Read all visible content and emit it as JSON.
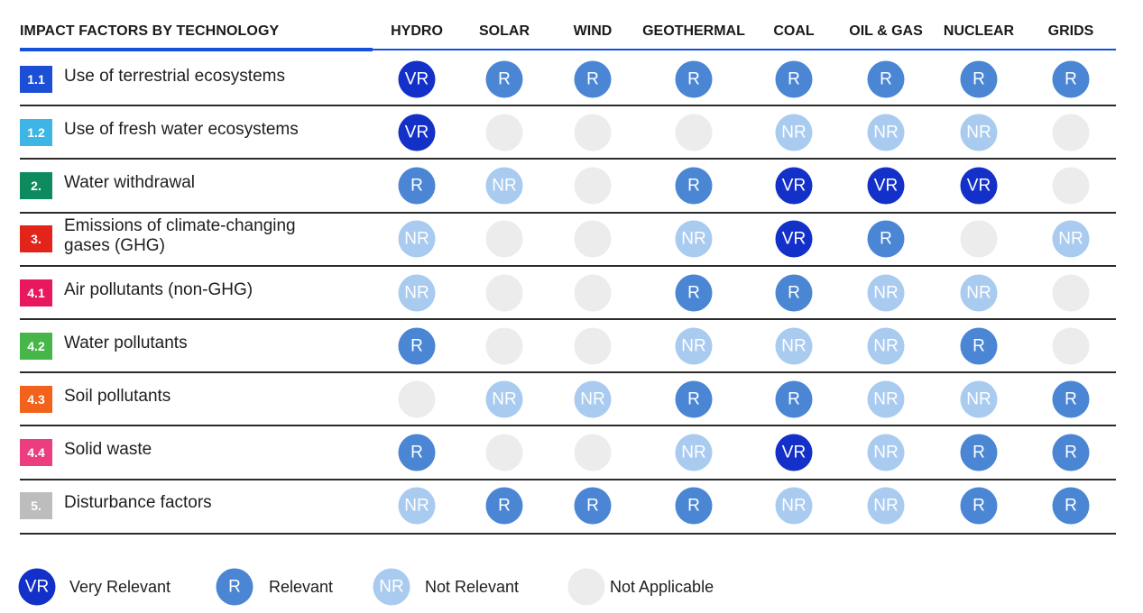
{
  "chart_data": {
    "type": "table",
    "title": "IMPACT FACTORS BY TECHNOLOGY",
    "columns": [
      "HYDRO",
      "SOLAR",
      "WIND",
      "GEOTHERMAL",
      "COAL",
      "OIL & GAS",
      "NUCLEAR",
      "GRIDS"
    ],
    "rows": [
      {
        "code": "1.1",
        "label": "Use of terrestrial ecosystems",
        "badge_color": "#1a4fd6",
        "values": [
          "VR",
          "R",
          "R",
          "R",
          "R",
          "R",
          "R",
          "R"
        ]
      },
      {
        "code": "1.2",
        "label": "Use of fresh water ecosystems",
        "badge_color": "#3db6e5",
        "values": [
          "VR",
          "NA",
          "NA",
          "NA",
          "NR",
          "NR",
          "NR",
          "NA"
        ]
      },
      {
        "code": "2.",
        "label": "Water withdrawal",
        "badge_color": "#0e8a5f",
        "values": [
          "R",
          "NR",
          "NA",
          "R",
          "VR",
          "VR",
          "VR",
          "NA"
        ]
      },
      {
        "code": "3.",
        "label": "Emissions of climate-changing gases (GHG)",
        "badge_color": "#e3241b",
        "values": [
          "NR",
          "NA",
          "NA",
          "NR",
          "VR",
          "R",
          "NA",
          "NR"
        ]
      },
      {
        "code": "4.1",
        "label": "Air pollutants (non-GHG)",
        "badge_color": "#e8185f",
        "values": [
          "NR",
          "NA",
          "NA",
          "R",
          "R",
          "NR",
          "NR",
          "NA"
        ]
      },
      {
        "code": "4.2",
        "label": "Water pollutants",
        "badge_color": "#47b649",
        "values": [
          "R",
          "NA",
          "NA",
          "NR",
          "NR",
          "NR",
          "R",
          "NA"
        ]
      },
      {
        "code": "4.3",
        "label": "Soil pollutants",
        "badge_color": "#f2621a",
        "values": [
          "NA",
          "NR",
          "NR",
          "R",
          "R",
          "NR",
          "NR",
          "R"
        ]
      },
      {
        "code": "4.4",
        "label": "Solid waste",
        "badge_color": "#ec3d80",
        "values": [
          "R",
          "NA",
          "NA",
          "NR",
          "VR",
          "NR",
          "R",
          "R"
        ]
      },
      {
        "code": "5.",
        "label": "Disturbance factors",
        "badge_color": "#bdbdbd",
        "values": [
          "NR",
          "R",
          "R",
          "R",
          "NR",
          "NR",
          "R",
          "R"
        ]
      }
    ],
    "levels": {
      "VR": {
        "text": "VR",
        "color": "#1330c9"
      },
      "R": {
        "text": "R",
        "color": "#4a86d4"
      },
      "NR": {
        "text": "NR",
        "color": "#a9cbef"
      },
      "NA": {
        "text": "",
        "color": "#ececec"
      }
    },
    "legend": [
      {
        "key": "VR",
        "label": "Very Relevant"
      },
      {
        "key": "R",
        "label": "Relevant"
      },
      {
        "key": "NR",
        "label": "Not Relevant"
      },
      {
        "key": "NA",
        "label": "Not Applicable"
      }
    ]
  }
}
